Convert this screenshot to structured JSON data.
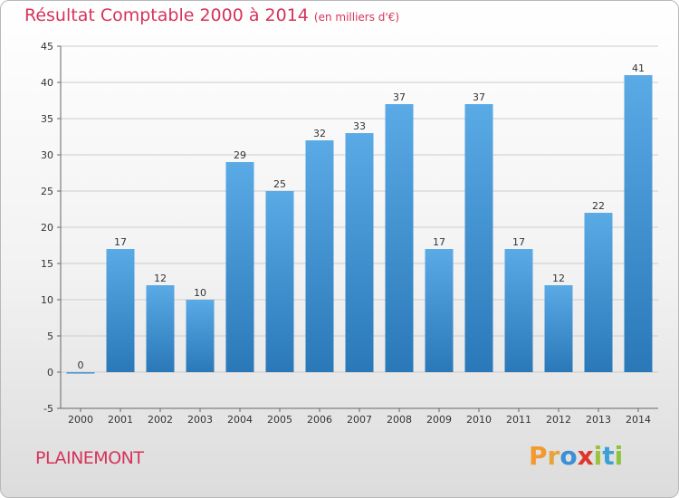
{
  "header": {
    "title": "Résultat Comptable 2000 à 2014",
    "subtitle": "(en milliers d'€)"
  },
  "footer": {
    "city": "PLAINEMONT",
    "brand_letters": [
      {
        "char": "P",
        "color": "#f29a2e"
      },
      {
        "char": "r",
        "color": "#e8a43a"
      },
      {
        "char": "o",
        "color": "#3a8fd6"
      },
      {
        "char": "x",
        "color": "#e0352b"
      },
      {
        "char": "i",
        "color": "#9ac43a"
      },
      {
        "char": "t",
        "color": "#3aa0d6"
      },
      {
        "char": "i",
        "color": "#8cc43a"
      }
    ]
  },
  "chart_data": {
    "type": "bar",
    "title": "Résultat Comptable 2000 à 2014",
    "subtitle": "(en milliers d'€)",
    "categories": [
      "2000",
      "2001",
      "2002",
      "2003",
      "2004",
      "2005",
      "2006",
      "2007",
      "2008",
      "2009",
      "2010",
      "2011",
      "2012",
      "2013",
      "2014"
    ],
    "values": [
      0,
      17,
      12,
      10,
      29,
      25,
      32,
      33,
      37,
      17,
      37,
      17,
      12,
      22,
      41
    ],
    "ylim": [
      -5,
      45
    ],
    "yticks": [
      -5,
      0,
      5,
      10,
      15,
      20,
      25,
      30,
      35,
      40,
      45
    ],
    "grid": true,
    "data_labels": true,
    "colors": {
      "bar_top": "#5aaae6",
      "bar_bottom": "#2a78b8",
      "grid": "#cccccc",
      "axis": "#666666"
    }
  }
}
